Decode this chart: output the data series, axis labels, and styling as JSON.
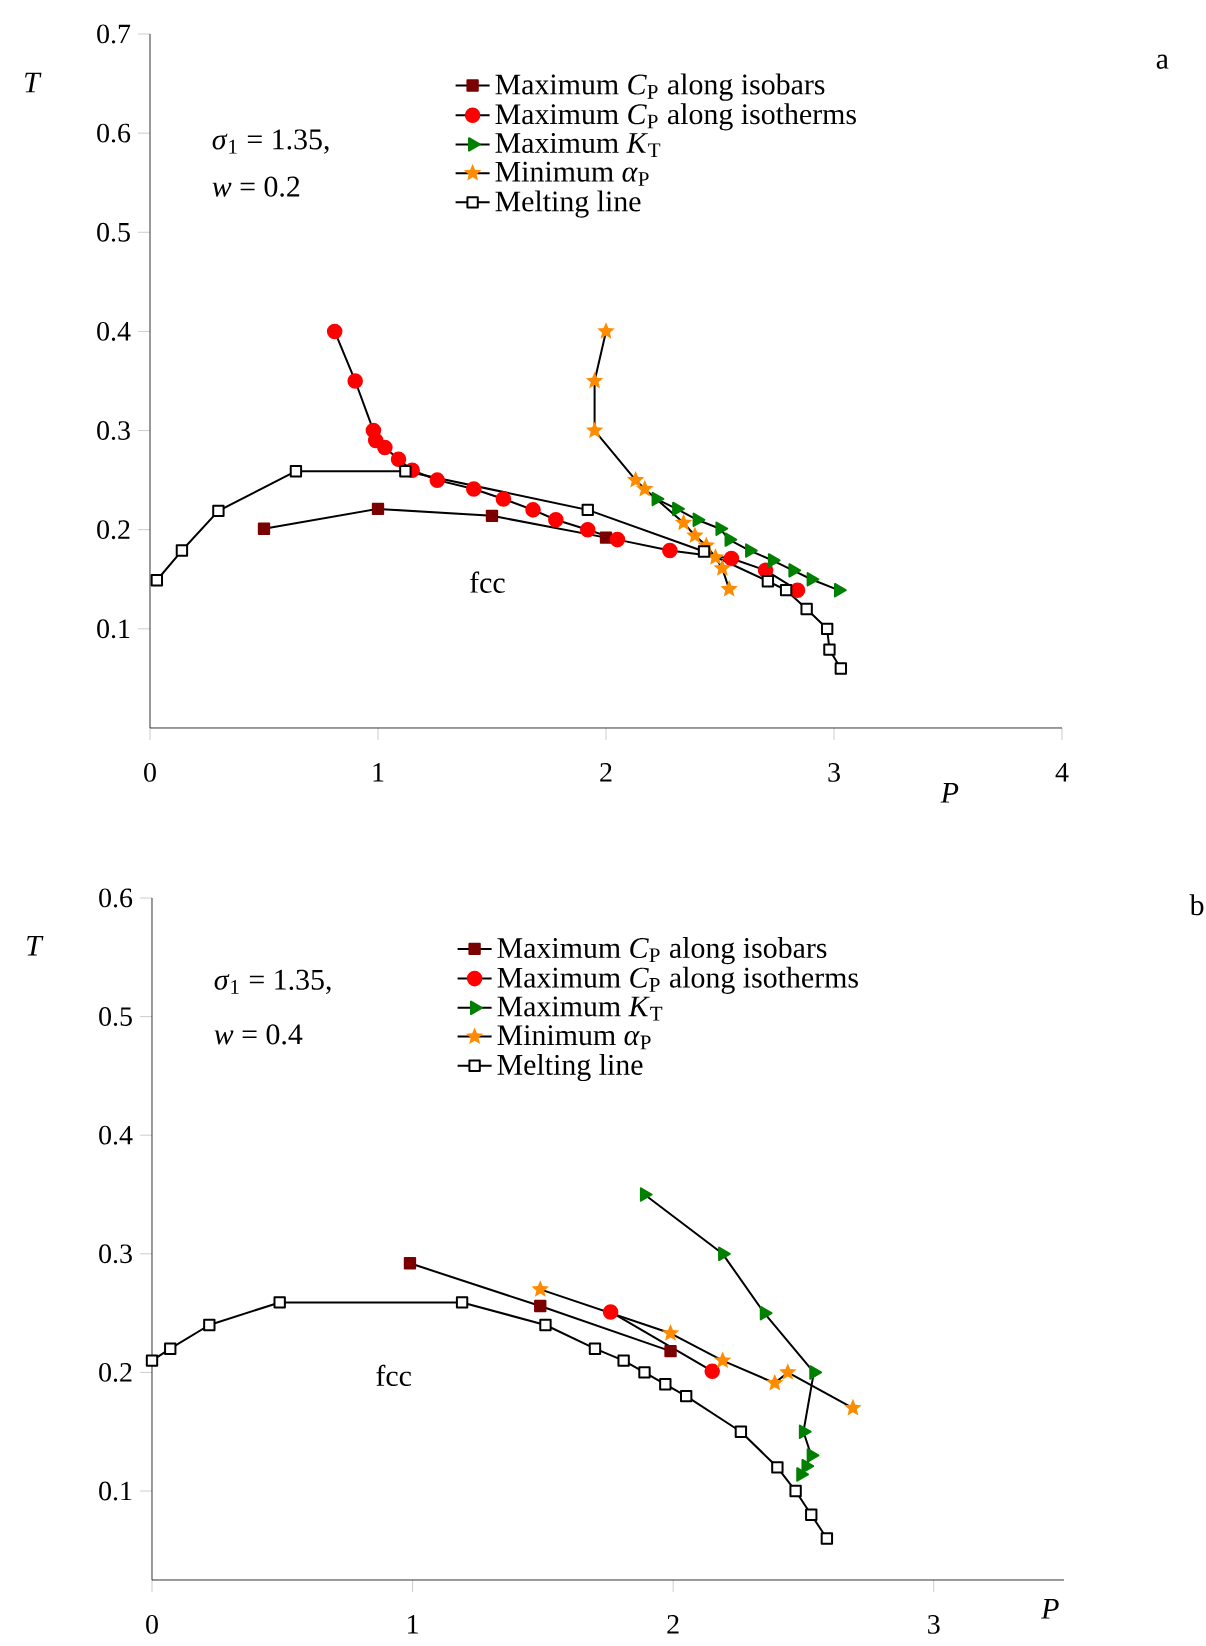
{
  "chart_data": [
    {
      "type": "line",
      "xlabel": "P",
      "ylabel": "T",
      "xlim": [
        0,
        4
      ],
      "ylim": [
        0,
        0.7
      ],
      "xticks": [
        0,
        1,
        2,
        3,
        4
      ],
      "yticks": [
        0.1,
        0.2,
        0.3,
        0.4,
        0.5,
        0.6,
        0.7
      ],
      "grid": false,
      "legend": "top right",
      "annotations": [
        "*σ*$_{1}$ = 1.35,",
        "*w* = 0.2",
        "fcc",
        "a"
      ],
      "series": [
        {
          "name": "Maximum *C*$_{P}$ along isobars",
          "color": "#7b0000",
          "marker": "square",
          "x": [
            0.5,
            1.0,
            1.5,
            2.0
          ],
          "values": [
            0.201,
            0.221,
            0.214,
            0.192
          ]
        },
        {
          "name": "Maximum *C*$_{P}$ along isotherms",
          "color": "#ff0000",
          "marker": "circle",
          "x": [
            0.81,
            0.9,
            0.98,
            0.99,
            1.03,
            1.09,
            1.15,
            1.26,
            1.42,
            1.55,
            1.68,
            1.78,
            1.92,
            2.05,
            2.28,
            2.55,
            2.7,
            2.84
          ],
          "values": [
            0.4,
            0.35,
            0.3,
            0.29,
            0.283,
            0.271,
            0.26,
            0.25,
            0.241,
            0.231,
            0.22,
            0.21,
            0.2,
            0.19,
            0.179,
            0.171,
            0.159,
            0.139
          ]
        },
        {
          "name": "Maximum *K*$_{T}$",
          "color": "#008000",
          "marker": "triangle",
          "x": [
            2.22,
            2.31,
            2.4,
            2.5,
            2.54,
            2.63,
            2.73,
            2.82,
            2.9,
            3.02
          ],
          "values": [
            0.231,
            0.221,
            0.21,
            0.201,
            0.19,
            0.179,
            0.169,
            0.159,
            0.15,
            0.139
          ]
        },
        {
          "name": "Minimum *α*$_{P}$",
          "color": "#ff8c00",
          "marker": "star",
          "x": [
            2.0,
            1.95,
            1.95,
            2.13,
            2.17,
            2.34,
            2.39,
            2.44,
            2.48,
            2.51,
            2.54
          ],
          "values": [
            0.4,
            0.35,
            0.3,
            0.25,
            0.241,
            0.207,
            0.194,
            0.184,
            0.172,
            0.161,
            0.14
          ]
        },
        {
          "name": "Melting line",
          "color": "#000000",
          "marker": "square",
          "x": [
            0.03,
            0.14,
            0.3,
            0.64,
            1.12,
            1.92,
            2.43,
            2.71,
            2.79,
            2.88,
            2.97,
            2.98,
            3.03
          ],
          "values": [
            0.149,
            0.179,
            0.219,
            0.259,
            0.259,
            0.22,
            0.178,
            0.148,
            0.139,
            0.12,
            0.1,
            0.079,
            0.06
          ]
        }
      ]
    },
    {
      "type": "line",
      "xlabel": "P",
      "ylabel": "T",
      "xlim": [
        0,
        3.5
      ],
      "ylim": [
        0.025,
        0.6
      ],
      "xticks": [
        0,
        1,
        2,
        3
      ],
      "yticks": [
        0.1,
        0.2,
        0.3,
        0.4,
        0.5,
        0.6
      ],
      "grid": false,
      "legend": "top right",
      "annotations": [
        "*σ*$_{1}$ = 1.35,",
        "*w* = 0.4",
        "fcc",
        "b"
      ],
      "series": [
        {
          "name": "Maximum *C*$_{P}$ along isobars",
          "color": "#7b0000",
          "marker": "square",
          "x": [
            0.99,
            1.49,
            1.99
          ],
          "values": [
            0.292,
            0.256,
            0.218
          ]
        },
        {
          "name": "Maximum *C*$_{P}$ along isotherms",
          "color": "#ff0000",
          "marker": "circle",
          "x": [
            1.76,
            2.15
          ],
          "values": [
            0.251,
            0.201
          ]
        },
        {
          "name": "Maximum *K*$_{T}$",
          "color": "#008000",
          "marker": "triangle",
          "x": [
            1.89,
            2.19,
            2.35,
            2.54,
            2.5,
            2.53,
            2.51,
            2.49
          ],
          "values": [
            0.35,
            0.3,
            0.25,
            0.2,
            0.15,
            0.13,
            0.121,
            0.114
          ]
        },
        {
          "name": "Minimum *α*$_{P}$",
          "color": "#ff8c00",
          "marker": "star",
          "x": [
            1.49,
            1.99,
            2.19,
            2.39,
            2.44,
            2.69
          ],
          "values": [
            0.27,
            0.233,
            0.21,
            0.191,
            0.2,
            0.17
          ]
        },
        {
          "name": "Melting line",
          "color": "#000000",
          "marker": "square",
          "x": [
            0.0,
            0.07,
            0.22,
            0.49,
            1.19,
            1.51,
            1.7,
            1.81,
            1.89,
            1.97,
            2.05,
            2.26,
            2.4,
            2.47,
            2.53,
            2.59
          ],
          "values": [
            0.21,
            0.22,
            0.24,
            0.259,
            0.259,
            0.24,
            0.22,
            0.21,
            0.2,
            0.19,
            0.18,
            0.15,
            0.12,
            0.1,
            0.08,
            0.06
          ]
        }
      ]
    }
  ]
}
